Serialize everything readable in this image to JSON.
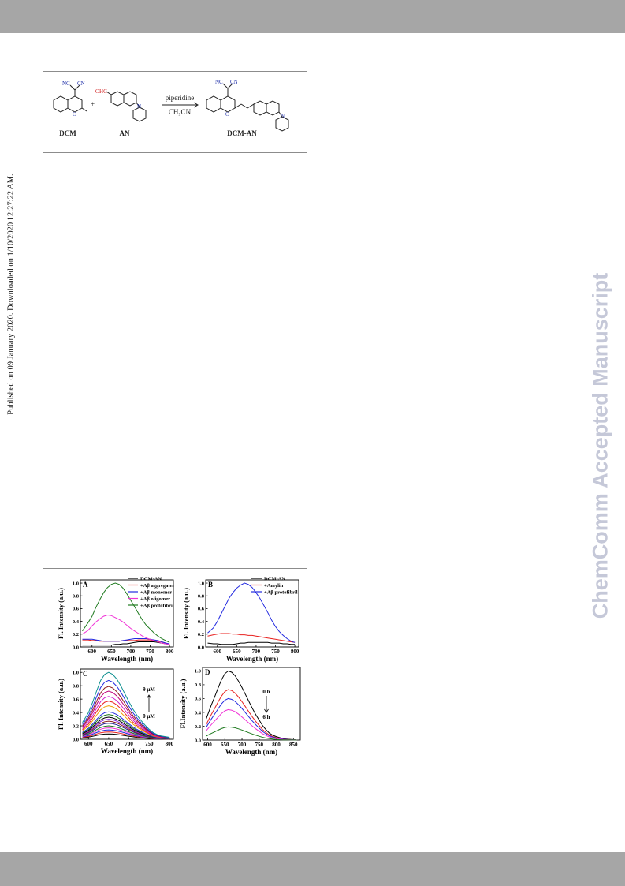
{
  "header": {
    "bar_color": "#a6a6a6"
  },
  "side_note": "Published on 09 January 2020. Downloaded on 1/10/2020 12:27:22 AM.",
  "watermark": "ChemComm Accepted Manuscript",
  "scheme": {
    "reagent": "piperidine",
    "solvent": "CH₃CN",
    "labels": [
      "DCM",
      "AN",
      "DCM-AN"
    ],
    "atoms": {
      "nc": "NC",
      "cn": "CN",
      "o": "O",
      "n": "N",
      "ohc": "OHC",
      "plus": "+"
    }
  },
  "figure_labels": {
    "panel_a": "A",
    "panel_b": "B",
    "panel_c": "C",
    "panel_d": "D",
    "annotation_c_top": "9 μM",
    "annotation_c_bottom": "0 μM",
    "annotation_d_top": "0 h",
    "annotation_d_bottom": "6 h"
  },
  "chart_data": [
    {
      "type": "line",
      "panel": "A",
      "xlabel": "Wavelength (nm)",
      "ylabel": "Fl. Intensity (a.u.)",
      "xlim": [
        570,
        810
      ],
      "ylim": [
        0,
        1.05
      ],
      "xticks": [
        600,
        650,
        700,
        750,
        800
      ],
      "yticks": [
        0.0,
        0.2,
        0.4,
        0.6,
        0.8,
        1.0
      ],
      "x": [
        575,
        590,
        600,
        610,
        620,
        630,
        640,
        650,
        660,
        670,
        680,
        690,
        700,
        710,
        720,
        730,
        740,
        750,
        760,
        770,
        780,
        790,
        800
      ],
      "legend": "top-right",
      "series": [
        {
          "name": "DCM-AN",
          "color": "#000000",
          "values": [
            0.03,
            0.03,
            0.03,
            0.03,
            0.03,
            0.03,
            0.03,
            0.03,
            0.04,
            0.04,
            0.05,
            0.05,
            0.06,
            0.07,
            0.08,
            0.08,
            0.08,
            0.08,
            0.08,
            0.07,
            0.06,
            0.05,
            0.04
          ]
        },
        {
          "name": "+Aβ aggregates",
          "color": "#e8201e",
          "values": [
            0.11,
            0.11,
            0.1,
            0.1,
            0.09,
            0.09,
            0.09,
            0.09,
            0.09,
            0.09,
            0.1,
            0.1,
            0.1,
            0.1,
            0.11,
            0.11,
            0.11,
            0.11,
            0.1,
            0.09,
            0.08,
            0.06,
            0.04
          ]
        },
        {
          "name": "+Aβ monomer",
          "color": "#2229e0",
          "values": [
            0.12,
            0.12,
            0.12,
            0.11,
            0.1,
            0.09,
            0.09,
            0.09,
            0.09,
            0.09,
            0.1,
            0.11,
            0.12,
            0.13,
            0.13,
            0.13,
            0.13,
            0.12,
            0.11,
            0.1,
            0.08,
            0.06,
            0.05
          ]
        },
        {
          "name": "+Aβ oligomer",
          "color": "#f032d6",
          "values": [
            0.2,
            0.26,
            0.33,
            0.39,
            0.44,
            0.48,
            0.5,
            0.49,
            0.46,
            0.43,
            0.39,
            0.34,
            0.29,
            0.25,
            0.21,
            0.17,
            0.14,
            0.12,
            0.1,
            0.08,
            0.06,
            0.05,
            0.04
          ]
        },
        {
          "name": "+Aβ protofibril",
          "color": "#1f7a1f",
          "values": [
            0.25,
            0.38,
            0.48,
            0.62,
            0.74,
            0.85,
            0.93,
            0.98,
            1.0,
            0.98,
            0.92,
            0.83,
            0.73,
            0.63,
            0.52,
            0.42,
            0.34,
            0.28,
            0.22,
            0.17,
            0.13,
            0.1,
            0.07
          ]
        }
      ]
    },
    {
      "type": "line",
      "panel": "B",
      "xlabel": "Wavelength (nm)",
      "ylabel": "Fl. Intensity (a.u.)",
      "xlim": [
        570,
        810
      ],
      "ylim": [
        0,
        1.05
      ],
      "xticks": [
        600,
        650,
        700,
        750,
        800
      ],
      "yticks": [
        0.0,
        0.2,
        0.4,
        0.6,
        0.8,
        1.0
      ],
      "x": [
        575,
        590,
        600,
        610,
        620,
        630,
        640,
        650,
        660,
        670,
        680,
        690,
        700,
        710,
        720,
        730,
        740,
        750,
        760,
        770,
        780,
        790,
        800
      ],
      "legend": "top-right",
      "series": [
        {
          "name": "DCM-AN",
          "color": "#000000",
          "values": [
            0.06,
            0.05,
            0.05,
            0.04,
            0.04,
            0.04,
            0.04,
            0.05,
            0.06,
            0.06,
            0.07,
            0.07,
            0.07,
            0.07,
            0.07,
            0.07,
            0.06,
            0.06,
            0.06,
            0.05,
            0.05,
            0.04,
            0.04
          ]
        },
        {
          "name": "+Amylin",
          "color": "#e8201e",
          "values": [
            0.17,
            0.19,
            0.2,
            0.21,
            0.21,
            0.21,
            0.2,
            0.2,
            0.19,
            0.19,
            0.18,
            0.18,
            0.17,
            0.16,
            0.15,
            0.14,
            0.13,
            0.12,
            0.11,
            0.1,
            0.09,
            0.08,
            0.07
          ]
        },
        {
          "name": "+Aβ protofibril",
          "color": "#2229e0",
          "values": [
            0.22,
            0.3,
            0.4,
            0.52,
            0.64,
            0.76,
            0.85,
            0.92,
            0.97,
            1.0,
            0.98,
            0.93,
            0.85,
            0.76,
            0.65,
            0.54,
            0.42,
            0.32,
            0.24,
            0.18,
            0.13,
            0.09,
            0.07
          ]
        }
      ]
    },
    {
      "type": "line",
      "panel": "C",
      "xlabel": "Wavelength (nm)",
      "ylabel": "Fl. Intensity (a.u.)",
      "xlim": [
        580,
        810
      ],
      "ylim": [
        0,
        1.05
      ],
      "xticks": [
        600,
        650,
        700,
        750,
        800
      ],
      "yticks": [
        0.0,
        0.2,
        0.4,
        0.6,
        0.8,
        1.0
      ],
      "x": [
        585,
        600,
        610,
        620,
        630,
        640,
        650,
        660,
        670,
        680,
        690,
        700,
        710,
        720,
        730,
        740,
        750,
        760,
        770,
        780,
        790,
        800
      ],
      "shape": [
        0.25,
        0.4,
        0.55,
        0.72,
        0.88,
        0.97,
        1.0,
        0.97,
        0.9,
        0.8,
        0.68,
        0.56,
        0.45,
        0.36,
        0.28,
        0.21,
        0.15,
        0.1,
        0.07,
        0.05,
        0.04,
        0.03
      ],
      "series": [
        {
          "peak": 0.08,
          "color": "#000000"
        },
        {
          "peak": 0.11,
          "color": "#e8201e"
        },
        {
          "peak": 0.14,
          "color": "#2229e0"
        },
        {
          "peak": 0.17,
          "color": "#f032d6"
        },
        {
          "peak": 0.2,
          "color": "#1f7a1f"
        },
        {
          "peak": 0.24,
          "color": "#1b1b8f"
        },
        {
          "peak": 0.27,
          "color": "#8b1a1a"
        },
        {
          "peak": 0.3,
          "color": "#8a2be2"
        },
        {
          "peak": 0.33,
          "color": "#000000"
        },
        {
          "peak": 0.37,
          "color": "#1f7a1f"
        },
        {
          "peak": 0.41,
          "color": "#2229e0"
        },
        {
          "peak": 0.5,
          "color": "#f0a000"
        },
        {
          "peak": 0.57,
          "color": "#e8201e"
        },
        {
          "peak": 0.64,
          "color": "#d01fd0"
        },
        {
          "peak": 0.72,
          "color": "#c0007a"
        },
        {
          "peak": 0.79,
          "color": "#8b1a1a"
        },
        {
          "peak": 0.88,
          "color": "#2229e0"
        },
        {
          "peak": 1.0,
          "color": "#0f9090"
        }
      ]
    },
    {
      "type": "line",
      "panel": "D",
      "xlabel": "Wavelength (nm)",
      "ylabel": "Fl.Intensity (a.u.)",
      "xlim": [
        585,
        870
      ],
      "ylim": [
        0,
        1.05
      ],
      "xticks": [
        600,
        650,
        700,
        750,
        800,
        850
      ],
      "yticks": [
        0.0,
        0.2,
        0.4,
        0.6,
        0.8,
        1.0
      ],
      "x": [
        595,
        610,
        620,
        630,
        640,
        650,
        660,
        670,
        680,
        690,
        700,
        710,
        720,
        730,
        740,
        750,
        760,
        770,
        780,
        790,
        800,
        820,
        840,
        860
      ],
      "shape": [
        0.3,
        0.5,
        0.62,
        0.75,
        0.87,
        0.96,
        1.0,
        0.98,
        0.93,
        0.85,
        0.76,
        0.66,
        0.56,
        0.46,
        0.37,
        0.29,
        0.21,
        0.15,
        0.1,
        0.07,
        0.05,
        0.02,
        0.01,
        0.0
      ],
      "series": [
        {
          "peak": 1.0,
          "color": "#000000"
        },
        {
          "peak": 0.73,
          "color": "#e8201e"
        },
        {
          "peak": 0.6,
          "color": "#2229e0"
        },
        {
          "peak": 0.44,
          "color": "#f032d6"
        },
        {
          "peak": 0.19,
          "color": "#1f7a1f"
        }
      ]
    }
  ]
}
